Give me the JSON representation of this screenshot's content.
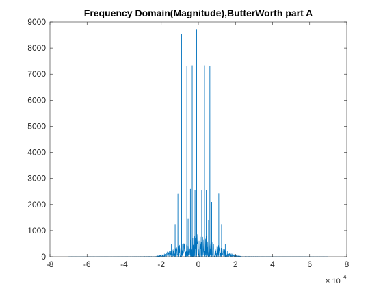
{
  "chart_data": {
    "type": "line",
    "title": "Frequency Domain(Magnitude),ButterWorth part A",
    "xlabel": "",
    "ylabel": "",
    "xlim": [
      -80000,
      80000
    ],
    "ylim": [
      0,
      9000
    ],
    "x_ticks": [
      -80000,
      -60000,
      -40000,
      -20000,
      0,
      20000,
      40000,
      60000,
      80000
    ],
    "x_tick_labels": [
      "-8",
      "-6",
      "-4",
      "-2",
      "0",
      "2",
      "4",
      "6",
      "8"
    ],
    "x_exponent_base": "× 10",
    "x_exponent_power": "4",
    "y_ticks": [
      0,
      1000,
      2000,
      3000,
      4000,
      5000,
      6000,
      7000,
      8000,
      9000
    ],
    "y_tick_labels": [
      "0",
      "1000",
      "2000",
      "3000",
      "4000",
      "5000",
      "6000",
      "7000",
      "8000",
      "9000"
    ],
    "grid": false,
    "box": true,
    "series": [
      {
        "color": "#0072BD",
        "x_range": [
          -70000,
          70000
        ],
        "peaks": [
          {
            "x": -900,
            "y": 8700
          },
          {
            "x": 900,
            "y": 8700
          },
          {
            "x": -9000,
            "y": 8550
          },
          {
            "x": 9000,
            "y": 8550
          },
          {
            "x": -6200,
            "y": 7300
          },
          {
            "x": 6200,
            "y": 7300
          },
          {
            "x": -3300,
            "y": 7330
          },
          {
            "x": 3300,
            "y": 7330
          },
          {
            "x": -11000,
            "y": 2420
          },
          {
            "x": 11000,
            "y": 2430
          },
          {
            "x": -1800,
            "y": 2550
          },
          {
            "x": 1800,
            "y": 2550
          },
          {
            "x": -4300,
            "y": 2600
          },
          {
            "x": 4300,
            "y": 2550
          },
          {
            "x": -7200,
            "y": 2100
          },
          {
            "x": 7200,
            "y": 2100
          },
          {
            "x": -14500,
            "y": 480
          },
          {
            "x": 14500,
            "y": 480
          },
          {
            "x": -12500,
            "y": 1250
          },
          {
            "x": 12500,
            "y": 1250
          },
          {
            "x": -5500,
            "y": 1450
          },
          {
            "x": 5500,
            "y": 1400
          }
        ],
        "noise_envelope_halfwidth": 25000,
        "noise_max": 1100
      }
    ]
  }
}
